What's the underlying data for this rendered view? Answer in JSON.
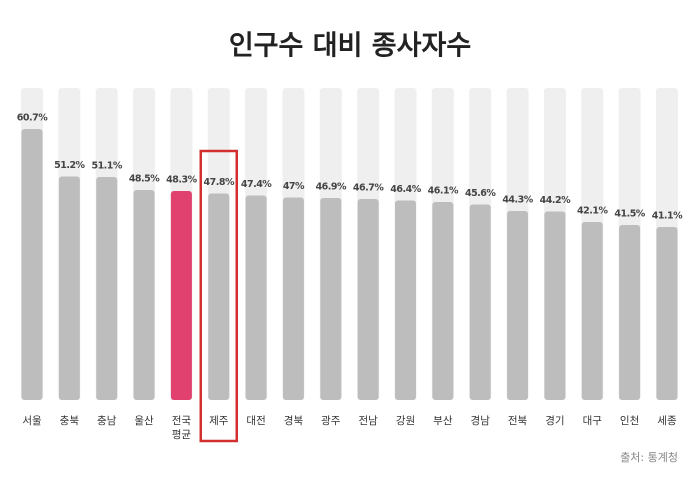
{
  "chart_data": {
    "type": "bar",
    "title": "인구수 대비 종사자수",
    "categories": [
      "서울",
      "충북",
      "충남",
      "울산",
      "전국\n평균",
      "제주",
      "대전",
      "경북",
      "광주",
      "전남",
      "강원",
      "부산",
      "경남",
      "전북",
      "경기",
      "대구",
      "인천",
      "세종"
    ],
    "values": [
      60.7,
      51.2,
      51.1,
      48.5,
      48.3,
      47.8,
      47.4,
      47,
      46.9,
      46.7,
      46.4,
      46.1,
      45.6,
      44.3,
      44.2,
      42.1,
      41.5,
      41.1
    ],
    "value_labels": [
      "60.7%",
      "51.2%",
      "51.1%",
      "48.5%",
      "48.3%",
      "47.8%",
      "47.4%",
      "47%",
      "46.9%",
      "46.7%",
      "46.4%",
      "46.1%",
      "45.6%",
      "44.3%",
      "44.2%",
      "42.1%",
      "41.5%",
      "41.1%"
    ],
    "colors": [
      "#bdbdbd",
      "#bdbdbd",
      "#bdbdbd",
      "#bdbdbd",
      "#e0416f",
      "#bdbdbd",
      "#bdbdbd",
      "#bdbdbd",
      "#bdbdbd",
      "#bdbdbd",
      "#bdbdbd",
      "#bdbdbd",
      "#bdbdbd",
      "#bdbdbd",
      "#bdbdbd",
      "#bdbdbd",
      "#bdbdbd",
      "#bdbdbd"
    ],
    "source": "출처: 통계청"
  }
}
